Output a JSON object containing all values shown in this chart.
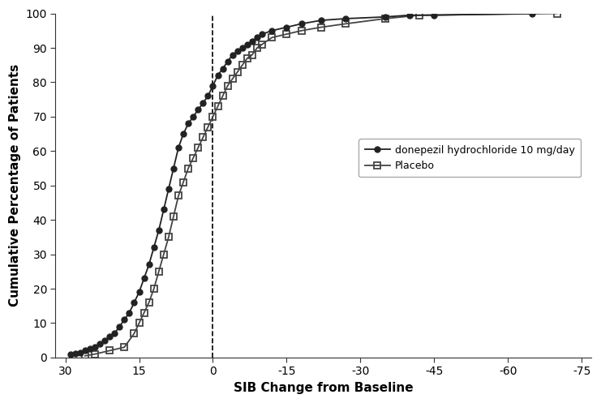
{
  "title": "",
  "xlabel": "SIB Change from Baseline",
  "ylabel": "Cumulative Percentage of Patients",
  "xlim": [
    32,
    -77
  ],
  "ylim": [
    0,
    100
  ],
  "xticks": [
    30,
    15,
    0,
    -15,
    -30,
    -45,
    -60,
    -75
  ],
  "yticks": [
    0,
    10,
    20,
    30,
    40,
    50,
    60,
    70,
    80,
    90,
    100
  ],
  "vline_x": 0,
  "background_color": "#ffffff",
  "donepezil": {
    "x": [
      29,
      28,
      27,
      26,
      25,
      24,
      23,
      22,
      21,
      20,
      19,
      18,
      17,
      16,
      15,
      14,
      13,
      12,
      11,
      10,
      9,
      8,
      7,
      6,
      5,
      4,
      3,
      2,
      1,
      0,
      -1,
      -2,
      -3,
      -4,
      -5,
      -6,
      -7,
      -8,
      -9,
      -10,
      -12,
      -15,
      -18,
      -22,
      -27,
      -35,
      -40,
      -45,
      -65
    ],
    "y": [
      1,
      1.2,
      1.5,
      2,
      2.5,
      3,
      4,
      5,
      6,
      7,
      9,
      11,
      13,
      16,
      19,
      23,
      27,
      32,
      37,
      43,
      49,
      55,
      61,
      65,
      68,
      70,
      72,
      74,
      76,
      79,
      82,
      84,
      86,
      88,
      89,
      90,
      91,
      92,
      93,
      94,
      95,
      96,
      97,
      98,
      98.5,
      99,
      99.5,
      99.5,
      100
    ],
    "color": "#222222",
    "marker": "o",
    "markersize": 5,
    "label": "donepezil hydrochloride 10 mg/day",
    "linewidth": 1.3
  },
  "placebo": {
    "x": [
      26,
      24,
      21,
      18,
      16,
      15,
      14,
      13,
      12,
      11,
      10,
      9,
      8,
      7,
      6,
      5,
      4,
      3,
      2,
      1,
      0,
      -1,
      -2,
      -3,
      -4,
      -5,
      -6,
      -7,
      -8,
      -9,
      -10,
      -12,
      -15,
      -18,
      -22,
      -27,
      -35,
      -42,
      -70
    ],
    "y": [
      0.5,
      1,
      2,
      3,
      7,
      10,
      13,
      16,
      20,
      25,
      30,
      35,
      41,
      47,
      51,
      55,
      58,
      61,
      64,
      67,
      70,
      73,
      76,
      79,
      81,
      83,
      85,
      87,
      88,
      90,
      91,
      93,
      94,
      95,
      96,
      97,
      98.5,
      99.5,
      100
    ],
    "color": "#444444",
    "marker": "s",
    "markersize": 6,
    "label": "Placebo",
    "linewidth": 1.3
  }
}
